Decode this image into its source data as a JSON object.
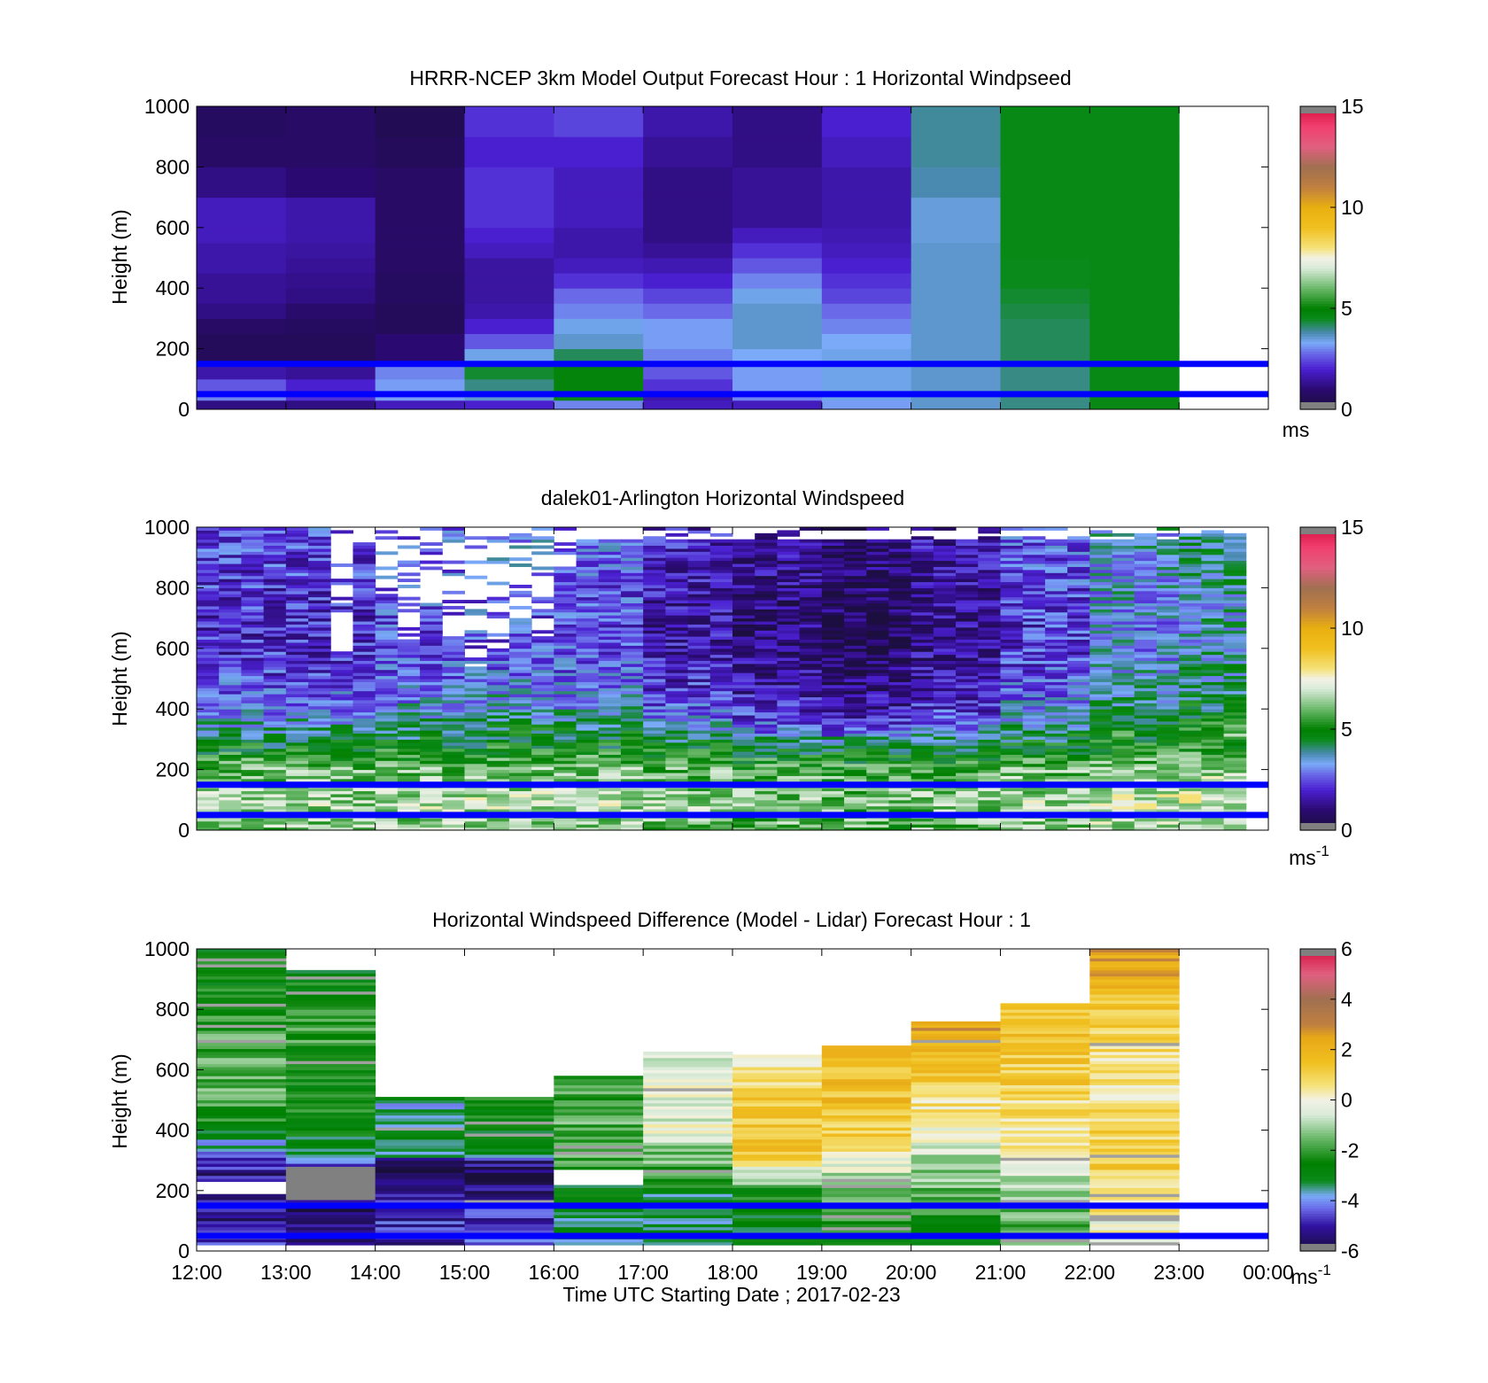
{
  "figure": {
    "xlabel": "Time UTC  Starting Date ; 2017-02-23",
    "x_tick_labels": [
      "12:00",
      "13:00",
      "14:00",
      "15:00",
      "16:00",
      "17:00",
      "18:00",
      "19:00",
      "20:00",
      "21:00",
      "22:00",
      "23:00",
      "00:00"
    ]
  },
  "chart_data": [
    {
      "type": "heatmap",
      "title": "HRRR-NCEP 3km Model Output   Forecast Hour : 1 Horizontal Windpseed",
      "xlabel": "",
      "ylabel": "Height (m)",
      "xlim": [
        "12:00",
        "00:00"
      ],
      "ylim": [
        0,
        1000
      ],
      "y_ticks": [
        0,
        200,
        400,
        600,
        800,
        1000
      ],
      "colorbar": {
        "ticks": [
          0,
          5,
          10,
          15
        ],
        "range": [
          0,
          15
        ],
        "label": "ms"
      },
      "reference_lines_m": [
        150,
        50
      ],
      "reference_line_color": "#0000ff",
      "x_start_hours": [
        12,
        13,
        14,
        15,
        16,
        17,
        18,
        19,
        20,
        21,
        22
      ],
      "x_end_hour": 23,
      "y_edges_m": [
        0,
        30,
        60,
        100,
        150,
        200,
        250,
        300,
        350,
        400,
        450,
        500,
        550,
        600,
        700,
        800,
        900,
        1000
      ],
      "values": [
        [
          1.2,
          1.2,
          1.8,
          2.0,
          3.0,
          1.8,
          1.8,
          3.2,
          3.6,
          4.0,
          4.6
        ],
        [
          3.0,
          2.2,
          3.2,
          3.6,
          4.6,
          1.6,
          3.0,
          3.4,
          3.6,
          4.0,
          4.6
        ],
        [
          2.6,
          2.0,
          3.2,
          4.0,
          4.8,
          2.2,
          3.2,
          3.4,
          3.6,
          4.0,
          4.6
        ],
        [
          1.6,
          1.4,
          3.0,
          4.4,
          4.8,
          2.6,
          3.2,
          3.4,
          3.6,
          4.0,
          4.6
        ],
        [
          0.6,
          0.6,
          1.0,
          3.4,
          4.2,
          3.0,
          3.3,
          3.4,
          3.6,
          4.2,
          4.6
        ],
        [
          0.6,
          0.6,
          1.0,
          2.6,
          3.6,
          3.2,
          3.6,
          3.3,
          3.6,
          4.2,
          4.6
        ],
        [
          0.8,
          0.7,
          0.6,
          2.0,
          3.4,
          3.2,
          3.6,
          3.0,
          3.6,
          4.2,
          4.6
        ],
        [
          1.2,
          0.9,
          0.6,
          1.6,
          3.0,
          2.8,
          3.6,
          2.8,
          3.6,
          4.3,
          4.6
        ],
        [
          1.4,
          1.2,
          0.7,
          1.5,
          2.8,
          2.4,
          3.4,
          2.4,
          3.6,
          4.4,
          4.6
        ],
        [
          1.4,
          1.3,
          0.7,
          1.5,
          2.2,
          2.0,
          3.0,
          2.2,
          3.6,
          4.5,
          4.6
        ],
        [
          1.6,
          1.4,
          0.8,
          1.5,
          1.8,
          1.7,
          2.6,
          2.0,
          3.6,
          4.5,
          4.6
        ],
        [
          1.6,
          1.5,
          0.8,
          1.8,
          1.6,
          1.4,
          2.2,
          1.8,
          3.6,
          4.6,
          4.6
        ],
        [
          1.8,
          1.6,
          0.8,
          2.0,
          1.6,
          1.2,
          1.8,
          1.7,
          3.5,
          4.6,
          4.6
        ],
        [
          1.8,
          1.6,
          0.8,
          2.2,
          1.8,
          1.2,
          1.4,
          1.6,
          3.5,
          4.6,
          4.6
        ],
        [
          1.2,
          1.0,
          0.8,
          2.2,
          1.8,
          1.2,
          1.4,
          1.6,
          3.8,
          4.6,
          4.6
        ],
        [
          0.8,
          0.8,
          0.6,
          2.0,
          2.0,
          1.4,
          1.2,
          1.8,
          3.9,
          4.6,
          4.6
        ],
        [
          0.7,
          0.8,
          0.5,
          2.2,
          2.4,
          1.6,
          1.2,
          2.0,
          3.9,
          4.6,
          4.6
        ]
      ]
    },
    {
      "type": "heatmap",
      "title": "dalek01-Arlington  Horizontal Windspeed",
      "xlabel": "",
      "ylabel": "Height (m)",
      "xlim": [
        "12:00",
        "00:00"
      ],
      "ylim": [
        0,
        1000
      ],
      "y_ticks": [
        0,
        200,
        400,
        600,
        800,
        1000
      ],
      "colorbar": {
        "ticks": [
          0,
          5,
          10,
          15
        ],
        "range": [
          0,
          15
        ],
        "label": "ms",
        "label_superscript": "-1"
      },
      "reference_lines_m": [
        150,
        50
      ],
      "reference_line_color": "#0000ff",
      "profile_interval_min": 15,
      "gate_size_m": 10,
      "profile_range_m": [
        0,
        1000
      ],
      "profile_mean_ms": [
        [
          0,
          6.2
        ],
        [
          100,
          6.6
        ],
        [
          200,
          6.0
        ],
        [
          300,
          4.4
        ],
        [
          400,
          3.0
        ],
        [
          500,
          2.4
        ],
        [
          600,
          2.0
        ],
        [
          700,
          2.0
        ],
        [
          800,
          2.2
        ],
        [
          1000,
          2.4
        ]
      ],
      "profile_mean_hourly_adjust_ms": [
        0,
        0,
        0.4,
        0.6,
        0.4,
        -0.4,
        -1.0,
        -1.4,
        -0.8,
        0.2,
        1.2,
        1.6
      ],
      "data_top_m_each_15min": [
        1000,
        1000,
        1000,
        1000,
        1000,
        1000,
        590,
        940,
        780,
        620,
        750,
        640,
        540,
        600,
        700,
        640,
        870,
        960,
        960,
        960,
        960,
        960,
        960,
        960,
        960,
        960,
        960,
        960,
        960,
        960,
        960,
        960,
        960,
        960,
        960,
        960,
        960,
        960,
        960,
        960,
        960,
        960,
        960,
        960,
        980,
        980,
        980,
        980
      ]
    },
    {
      "type": "heatmap",
      "title": "Horizontal Windspeed Difference (Model - Lidar) Forecast Hour : 1",
      "xlabel": "Time UTC  Starting Date ; 2017-02-23",
      "ylabel": "Height (m)",
      "xlim": [
        "12:00",
        "00:00"
      ],
      "ylim": [
        0,
        1000
      ],
      "y_ticks": [
        0,
        200,
        400,
        600,
        800,
        1000
      ],
      "colorbar": {
        "ticks": [
          -6,
          -4,
          -2,
          0,
          2,
          4,
          6
        ],
        "range": [
          -6,
          6
        ],
        "label": "ms",
        "label_superscript": "-1"
      },
      "reference_lines_m": [
        150,
        50
      ],
      "reference_line_color": "#0000ff",
      "x_start_hours": [
        12,
        13,
        14,
        15,
        16,
        17,
        18,
        19,
        20,
        21,
        22
      ],
      "x_end_hour": 23,
      "data_top_m": [
        1000,
        930,
        510,
        510,
        580,
        660,
        650,
        680,
        760,
        820,
        1000
      ],
      "gap_m": [
        null,
        null,
        null,
        null,
        null,
        null,
        null,
        null,
        [
          820,
          820
        ],
        [
          900,
          880
        ],
        null
      ],
      "band_gate_m": 10,
      "mean_diff_by_height": [
        {
          "col": 0,
          "profile": [
            [
              0,
              -4.6
            ],
            [
              100,
              -5.0
            ],
            [
              200,
              -5.2
            ],
            [
              300,
              -5.0
            ],
            [
              400,
              -2.6
            ],
            [
              600,
              -1.4
            ],
            [
              800,
              -2.2
            ],
            [
              1000,
              -2.8
            ]
          ]
        },
        {
          "col": 1,
          "profile": [
            [
              0,
              -5.0
            ],
            [
              100,
              -5.0
            ],
            [
              200,
              -6.0
            ],
            [
              280,
              -5.2
            ],
            [
              320,
              -3.0
            ],
            [
              500,
              -2.4
            ],
            [
              700,
              -2.0
            ],
            [
              930,
              -2.8
            ]
          ]
        },
        {
          "col": 2,
          "profile": [
            [
              0,
              -5.0
            ],
            [
              100,
              -4.8
            ],
            [
              200,
              -5.4
            ],
            [
              300,
              -5.6
            ],
            [
              320,
              -3.2
            ],
            [
              510,
              -3.4
            ]
          ]
        },
        {
          "col": 3,
          "profile": [
            [
              0,
              -4.6
            ],
            [
              100,
              -4.8
            ],
            [
              200,
              -5.4
            ],
            [
              300,
              -5.4
            ],
            [
              320,
              -3.0
            ],
            [
              510,
              -2.6
            ]
          ]
        },
        {
          "col": 4,
          "profile": [
            [
              0,
              -3.2
            ],
            [
              200,
              -2.8
            ],
            [
              300,
              -1.8
            ],
            [
              400,
              -1.6
            ],
            [
              580,
              -2.2
            ]
          ]
        },
        {
          "col": 5,
          "profile": [
            [
              0,
              -3.2
            ],
            [
              150,
              -3.4
            ],
            [
              250,
              -2.2
            ],
            [
              400,
              -0.4
            ],
            [
              500,
              -0.2
            ],
            [
              660,
              -0.8
            ]
          ]
        },
        {
          "col": 6,
          "profile": [
            [
              0,
              -3.2
            ],
            [
              200,
              -2.4
            ],
            [
              250,
              -0.8
            ],
            [
              300,
              1.2
            ],
            [
              400,
              1.4
            ],
            [
              550,
              1.0
            ],
            [
              650,
              0.2
            ]
          ]
        },
        {
          "col": 7,
          "profile": [
            [
              0,
              -2.8
            ],
            [
              200,
              -1.6
            ],
            [
              300,
              -0.2
            ],
            [
              400,
              1.2
            ],
            [
              500,
              1.6
            ],
            [
              680,
              1.4
            ]
          ]
        },
        {
          "col": 8,
          "profile": [
            [
              0,
              -3.0
            ],
            [
              200,
              -1.4
            ],
            [
              300,
              -0.8
            ],
            [
              400,
              -0.2
            ],
            [
              500,
              0.8
            ],
            [
              650,
              1.6
            ],
            [
              760,
              2.4
            ]
          ]
        },
        {
          "col": 9,
          "profile": [
            [
              0,
              -2.0
            ],
            [
              200,
              -1.0
            ],
            [
              300,
              0.0
            ],
            [
              400,
              0.6
            ],
            [
              600,
              1.2
            ],
            [
              820,
              1.6
            ]
          ]
        },
        {
          "col": 10,
          "profile": [
            [
              0,
              -0.6
            ],
            [
              200,
              1.0
            ],
            [
              400,
              1.0
            ],
            [
              600,
              0.4
            ],
            [
              800,
              1.4
            ],
            [
              1000,
              2.6
            ]
          ]
        }
      ]
    }
  ]
}
